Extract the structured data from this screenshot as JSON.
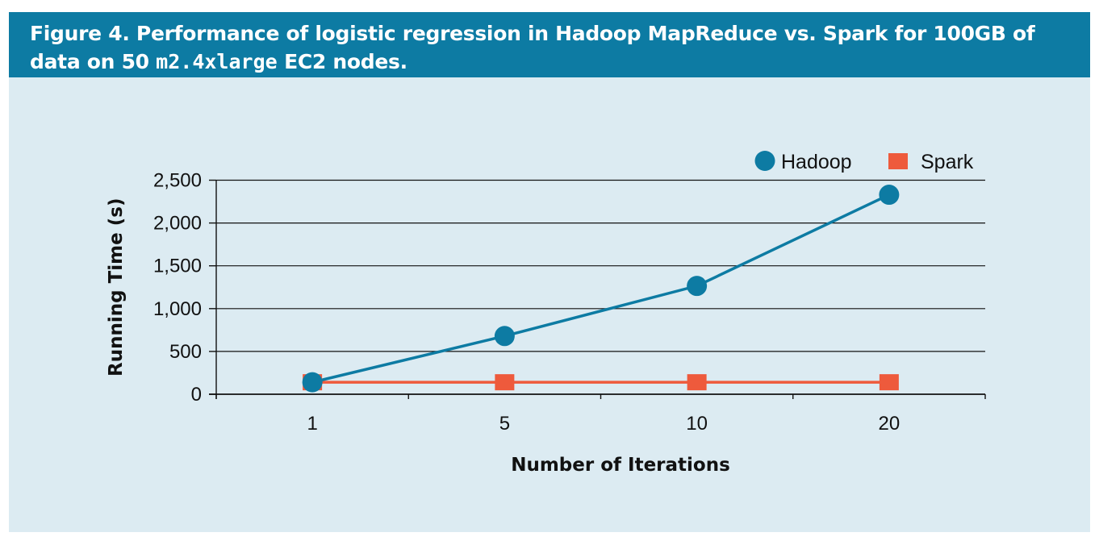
{
  "caption": {
    "prefix": "Figure 4. Performance of logistic regression in Hadoop MapReduce vs. Spark for 100GB of data on 50 ",
    "code": "m2.4xlarge",
    "suffix": " EC2 nodes."
  },
  "chart_data": {
    "type": "line",
    "title": "Figure 4. Performance of logistic regression in Hadoop MapReduce vs. Spark for 100GB of data on 50 m2.4xlarge EC2 nodes.",
    "xlabel": "Number of Iterations",
    "ylabel": "Running Time (s)",
    "categories": [
      "1",
      "5",
      "10",
      "20"
    ],
    "ylim": [
      0,
      2500
    ],
    "yticks": [
      0,
      500,
      1000,
      1500,
      2000,
      2500
    ],
    "ytick_labels": [
      "0",
      "500",
      "1,000",
      "1,500",
      "2,000",
      "2,500"
    ],
    "grid": "horizontal",
    "legend_position": "top-right",
    "series": [
      {
        "name": "Hadoop",
        "marker": "circle",
        "color": "#0d7ba3",
        "values": [
          140,
          680,
          1265,
          2330
        ]
      },
      {
        "name": "Spark",
        "marker": "square",
        "color": "#ee5a3c",
        "values": [
          140,
          140,
          140,
          140
        ]
      }
    ]
  }
}
